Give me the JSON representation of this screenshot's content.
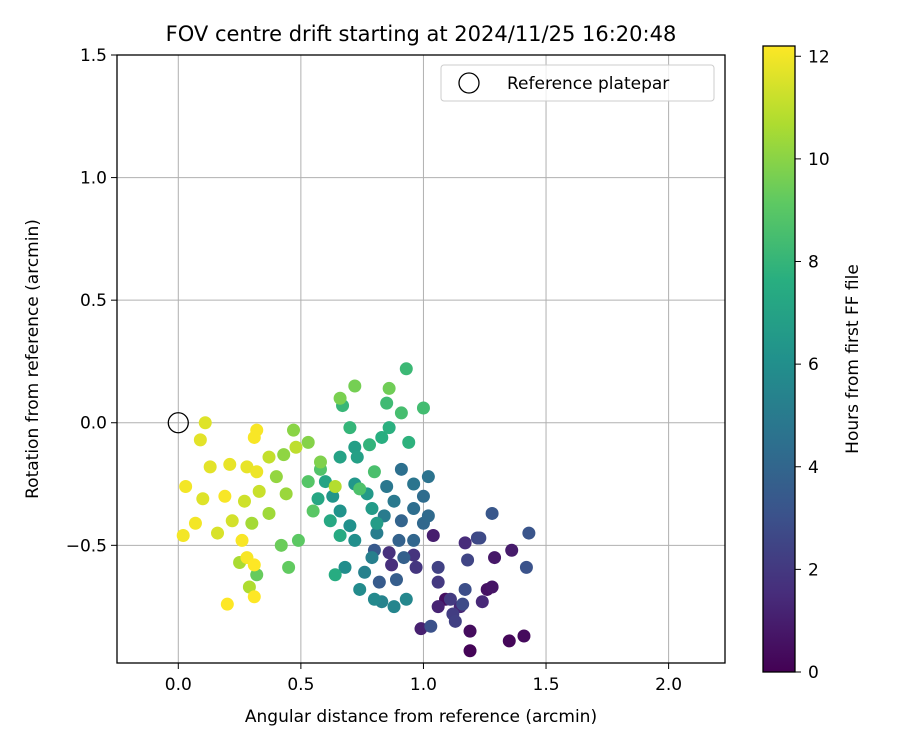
{
  "chart_data": {
    "type": "scatter",
    "title": "FOV centre drift starting at 2024/11/25 16:20:48",
    "xlabel": "Angular distance from reference (arcmin)",
    "ylabel": "Rotation from reference (arcmin)",
    "xlim": [
      -0.25,
      2.23
    ],
    "ylim": [
      -0.98,
      1.5
    ],
    "xticks": [
      0.0,
      0.5,
      1.0,
      1.5,
      2.0
    ],
    "xtick_labels": [
      "0.0",
      "0.5",
      "1.0",
      "1.5",
      "2.0"
    ],
    "yticks": [
      -0.5,
      0.0,
      0.5,
      1.0,
      1.5
    ],
    "ytick_labels": [
      "−0.5",
      "0.0",
      "0.5",
      "1.0",
      "1.5"
    ],
    "grid": true,
    "legend": {
      "position": "top-right",
      "label": "Reference platepar"
    },
    "reference_point": {
      "x": 0.0,
      "y": 0.0,
      "marker": "open-circle"
    },
    "colorbar": {
      "label": "Hours from first FF file",
      "range": [
        0,
        12.2
      ],
      "ticks": [
        0,
        2,
        4,
        6,
        8,
        10,
        12
      ],
      "tick_labels": [
        "0",
        "2",
        "4",
        "6",
        "8",
        "10",
        "12"
      ],
      "colormap": "viridis"
    },
    "series": [
      {
        "points": [
          {
            "x": 1.19,
            "y": -0.93,
            "t": 0.1
          },
          {
            "x": 1.35,
            "y": -0.89,
            "t": 0.2
          },
          {
            "x": 1.41,
            "y": -0.87,
            "t": 0.3
          },
          {
            "x": 1.19,
            "y": -0.85,
            "t": 0.4
          },
          {
            "x": 1.09,
            "y": -0.72,
            "t": 0.5
          },
          {
            "x": 1.26,
            "y": -0.68,
            "t": 0.6
          },
          {
            "x": 1.28,
            "y": -0.67,
            "t": 0.7
          },
          {
            "x": 1.29,
            "y": -0.55,
            "t": 0.8
          },
          {
            "x": 1.36,
            "y": -0.52,
            "t": 0.9
          },
          {
            "x": 1.04,
            "y": -0.46,
            "t": 1.0
          },
          {
            "x": 0.99,
            "y": -0.84,
            "t": 1.1
          },
          {
            "x": 1.06,
            "y": -0.75,
            "t": 1.2
          },
          {
            "x": 1.15,
            "y": -0.75,
            "t": 1.3
          },
          {
            "x": 1.24,
            "y": -0.73,
            "t": 1.4
          },
          {
            "x": 1.17,
            "y": -0.49,
            "t": 1.5
          },
          {
            "x": 0.87,
            "y": -0.58,
            "t": 1.6
          },
          {
            "x": 0.86,
            "y": -0.53,
            "t": 1.7
          },
          {
            "x": 0.96,
            "y": -0.54,
            "t": 1.8
          },
          {
            "x": 0.97,
            "y": -0.59,
            "t": 1.9
          },
          {
            "x": 1.06,
            "y": -0.65,
            "t": 2.0
          },
          {
            "x": 1.11,
            "y": -0.72,
            "t": 2.1
          },
          {
            "x": 1.12,
            "y": -0.78,
            "t": 2.2
          },
          {
            "x": 1.13,
            "y": -0.81,
            "t": 2.3
          },
          {
            "x": 1.06,
            "y": -0.59,
            "t": 2.4
          },
          {
            "x": 1.18,
            "y": -0.56,
            "t": 2.5
          },
          {
            "x": 1.22,
            "y": -0.47,
            "t": 2.6
          },
          {
            "x": 1.23,
            "y": -0.47,
            "t": 2.7
          },
          {
            "x": 1.16,
            "y": -0.74,
            "t": 2.8
          },
          {
            "x": 1.17,
            "y": -0.68,
            "t": 2.9
          },
          {
            "x": 1.03,
            "y": -0.83,
            "t": 3.0
          },
          {
            "x": 1.42,
            "y": -0.59,
            "t": 3.1
          },
          {
            "x": 1.43,
            "y": -0.45,
            "t": 3.2
          },
          {
            "x": 1.28,
            "y": -0.37,
            "t": 3.3
          },
          {
            "x": 0.8,
            "y": -0.52,
            "t": 3.4
          },
          {
            "x": 0.82,
            "y": -0.65,
            "t": 3.5
          },
          {
            "x": 0.89,
            "y": -0.64,
            "t": 3.6
          },
          {
            "x": 0.92,
            "y": -0.55,
            "t": 3.7
          },
          {
            "x": 0.9,
            "y": -0.48,
            "t": 3.8
          },
          {
            "x": 0.91,
            "y": -0.4,
            "t": 3.9
          },
          {
            "x": 0.96,
            "y": -0.48,
            "t": 4.0
          },
          {
            "x": 1.0,
            "y": -0.41,
            "t": 4.1
          },
          {
            "x": 1.02,
            "y": -0.38,
            "t": 4.2
          },
          {
            "x": 1.0,
            "y": -0.3,
            "t": 4.3
          },
          {
            "x": 0.96,
            "y": -0.35,
            "t": 4.4
          },
          {
            "x": 0.91,
            "y": -0.19,
            "t": 4.5
          },
          {
            "x": 1.02,
            "y": -0.22,
            "t": 4.6
          },
          {
            "x": 0.96,
            "y": -0.25,
            "t": 4.7
          },
          {
            "x": 0.85,
            "y": -0.26,
            "t": 4.8
          },
          {
            "x": 0.88,
            "y": -0.32,
            "t": 4.9
          },
          {
            "x": 0.84,
            "y": -0.38,
            "t": 5.0
          },
          {
            "x": 0.81,
            "y": -0.45,
            "t": 5.1
          },
          {
            "x": 0.79,
            "y": -0.55,
            "t": 5.2
          },
          {
            "x": 0.76,
            "y": -0.61,
            "t": 5.3
          },
          {
            "x": 0.83,
            "y": -0.73,
            "t": 5.4
          },
          {
            "x": 0.88,
            "y": -0.75,
            "t": 5.5
          },
          {
            "x": 0.93,
            "y": -0.72,
            "t": 5.6
          },
          {
            "x": 0.8,
            "y": -0.72,
            "t": 5.7
          },
          {
            "x": 0.74,
            "y": -0.68,
            "t": 5.8
          },
          {
            "x": 0.68,
            "y": -0.59,
            "t": 5.9
          },
          {
            "x": 0.72,
            "y": -0.48,
            "t": 6.0
          },
          {
            "x": 0.7,
            "y": -0.42,
            "t": 6.1
          },
          {
            "x": 0.66,
            "y": -0.36,
            "t": 6.2
          },
          {
            "x": 0.63,
            "y": -0.3,
            "t": 6.3
          },
          {
            "x": 0.72,
            "y": -0.25,
            "t": 6.4
          },
          {
            "x": 0.77,
            "y": -0.29,
            "t": 6.5
          },
          {
            "x": 0.79,
            "y": -0.35,
            "t": 6.6
          },
          {
            "x": 0.81,
            "y": -0.41,
            "t": 6.7
          },
          {
            "x": 0.72,
            "y": -0.1,
            "t": 6.8
          },
          {
            "x": 0.73,
            "y": -0.14,
            "t": 6.9
          },
          {
            "x": 0.66,
            "y": -0.14,
            "t": 7.0
          },
          {
            "x": 0.6,
            "y": -0.24,
            "t": 7.1
          },
          {
            "x": 0.57,
            "y": -0.31,
            "t": 7.2
          },
          {
            "x": 0.62,
            "y": -0.4,
            "t": 7.3
          },
          {
            "x": 0.66,
            "y": -0.46,
            "t": 7.4
          },
          {
            "x": 0.64,
            "y": -0.62,
            "t": 7.5
          },
          {
            "x": 0.83,
            "y": -0.06,
            "t": 7.6
          },
          {
            "x": 0.86,
            "y": -0.02,
            "t": 7.7
          },
          {
            "x": 0.94,
            "y": -0.08,
            "t": 7.8
          },
          {
            "x": 0.78,
            "y": -0.09,
            "t": 7.9
          },
          {
            "x": 0.7,
            "y": -0.02,
            "t": 8.0
          },
          {
            "x": 0.67,
            "y": 0.07,
            "t": 8.1
          },
          {
            "x": 0.93,
            "y": 0.22,
            "t": 8.2
          },
          {
            "x": 0.85,
            "y": 0.08,
            "t": 8.3
          },
          {
            "x": 1.0,
            "y": 0.06,
            "t": 8.4
          },
          {
            "x": 0.91,
            "y": 0.04,
            "t": 8.5
          },
          {
            "x": 0.8,
            "y": -0.2,
            "t": 8.6
          },
          {
            "x": 0.74,
            "y": -0.27,
            "t": 8.7
          },
          {
            "x": 0.58,
            "y": -0.19,
            "t": 8.8
          },
          {
            "x": 0.53,
            "y": -0.24,
            "t": 8.9
          },
          {
            "x": 0.55,
            "y": -0.36,
            "t": 9.0
          },
          {
            "x": 0.49,
            "y": -0.48,
            "t": 9.1
          },
          {
            "x": 0.45,
            "y": -0.59,
            "t": 9.2
          },
          {
            "x": 0.32,
            "y": -0.62,
            "t": 9.3
          },
          {
            "x": 0.42,
            "y": -0.5,
            "t": 9.4
          },
          {
            "x": 0.86,
            "y": 0.14,
            "t": 9.5
          },
          {
            "x": 0.72,
            "y": 0.15,
            "t": 9.6
          },
          {
            "x": 0.66,
            "y": 0.1,
            "t": 9.7
          },
          {
            "x": 0.58,
            "y": -0.16,
            "t": 9.8
          },
          {
            "x": 0.53,
            "y": -0.08,
            "t": 9.9
          },
          {
            "x": 0.47,
            "y": -0.03,
            "t": 10.0
          },
          {
            "x": 0.43,
            "y": -0.13,
            "t": 10.1
          },
          {
            "x": 0.4,
            "y": -0.22,
            "t": 10.2
          },
          {
            "x": 0.44,
            "y": -0.29,
            "t": 10.3
          },
          {
            "x": 0.37,
            "y": -0.37,
            "t": 10.4
          },
          {
            "x": 0.3,
            "y": -0.41,
            "t": 10.5
          },
          {
            "x": 0.25,
            "y": -0.57,
            "t": 10.6
          },
          {
            "x": 0.29,
            "y": -0.67,
            "t": 10.7
          },
          {
            "x": 0.64,
            "y": -0.26,
            "t": 10.8
          },
          {
            "x": 0.48,
            "y": -0.1,
            "t": 11.0
          },
          {
            "x": 0.37,
            "y": -0.14,
            "t": 11.1
          },
          {
            "x": 0.33,
            "y": -0.28,
            "t": 11.2
          },
          {
            "x": 0.27,
            "y": -0.32,
            "t": 11.3
          },
          {
            "x": 0.22,
            "y": -0.4,
            "t": 11.4
          },
          {
            "x": 0.16,
            "y": -0.45,
            "t": 11.5
          },
          {
            "x": 0.1,
            "y": -0.31,
            "t": 11.6
          },
          {
            "x": 0.11,
            "y": 0.0,
            "t": 11.6
          },
          {
            "x": 0.09,
            "y": -0.07,
            "t": 11.7
          },
          {
            "x": 0.13,
            "y": -0.18,
            "t": 11.7
          },
          {
            "x": 0.21,
            "y": -0.17,
            "t": 11.8
          },
          {
            "x": 0.28,
            "y": -0.18,
            "t": 11.8
          },
          {
            "x": 0.32,
            "y": -0.2,
            "t": 11.9
          },
          {
            "x": 0.03,
            "y": -0.26,
            "t": 12.0
          },
          {
            "x": 0.07,
            "y": -0.41,
            "t": 12.0
          },
          {
            "x": 0.02,
            "y": -0.46,
            "t": 12.0
          },
          {
            "x": 0.19,
            "y": -0.3,
            "t": 12.1
          },
          {
            "x": 0.26,
            "y": -0.48,
            "t": 12.1
          },
          {
            "x": 0.28,
            "y": -0.55,
            "t": 12.1
          },
          {
            "x": 0.2,
            "y": -0.74,
            "t": 12.2
          },
          {
            "x": 0.31,
            "y": -0.58,
            "t": 12.2
          },
          {
            "x": 0.31,
            "y": -0.71,
            "t": 12.2
          },
          {
            "x": 0.32,
            "y": -0.03,
            "t": 12.1
          },
          {
            "x": 0.31,
            "y": -0.06,
            "t": 12.1
          }
        ]
      }
    ]
  }
}
